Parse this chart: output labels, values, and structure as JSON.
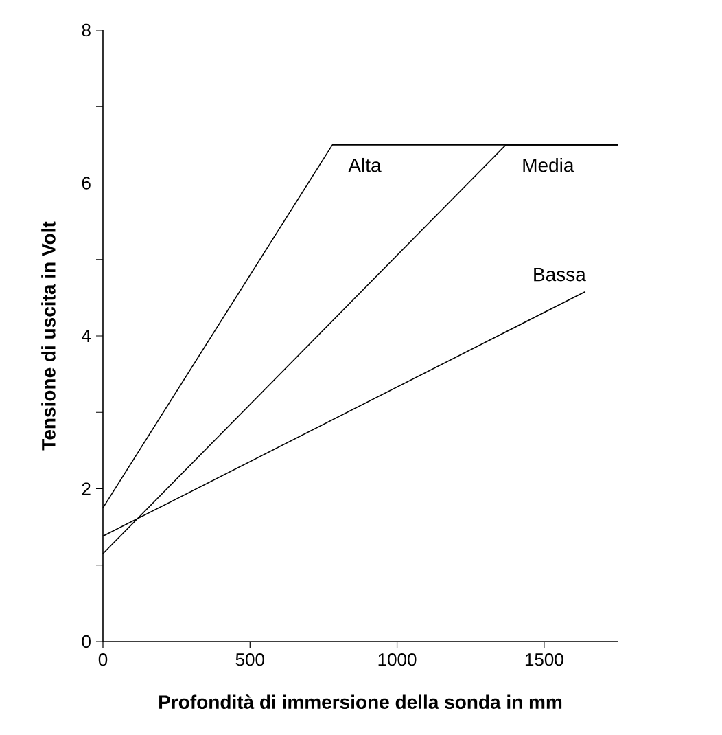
{
  "chart_data": {
    "type": "line",
    "xlabel": "Profondità di immersione della sonda in mm",
    "ylabel": "Tensione di uscita in Volt",
    "xlim": [
      0,
      1750
    ],
    "ylim": [
      0,
      8
    ],
    "xticks": [
      0,
      500,
      1000,
      1500
    ],
    "yticks": [
      0,
      {
        "value": 1,
        "label": null
      },
      2,
      {
        "value": 3,
        "label": null
      },
      4,
      {
        "value": 5,
        "label": null
      },
      6,
      {
        "value": 7,
        "label": null
      },
      8
    ],
    "marker": "none",
    "line_style": "solid",
    "series": [
      {
        "name": "Alta",
        "color": "#000000",
        "x": [
          0,
          780,
          1750
        ],
        "values": [
          1.75,
          6.5,
          6.5
        ]
      },
      {
        "name": "Media",
        "color": "#000000",
        "x": [
          0,
          1370,
          1750
        ],
        "values": [
          1.15,
          6.5,
          6.5
        ]
      },
      {
        "name": "Bassa",
        "color": "#000000",
        "x": [
          0,
          1640
        ],
        "values": [
          1.38,
          4.58
        ]
      }
    ]
  }
}
